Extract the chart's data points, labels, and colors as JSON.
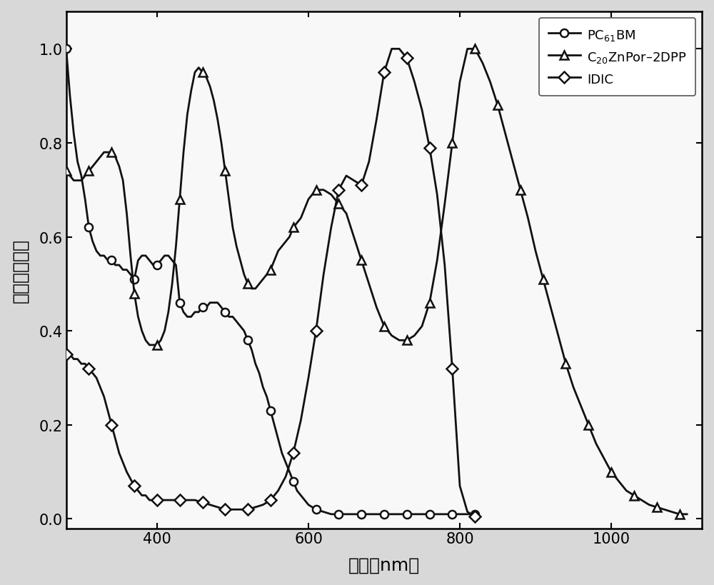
{
  "title": "",
  "xlabel": "波长（nm）",
  "ylabel": "归一化吸收値",
  "xlim": [
    280,
    1120
  ],
  "ylim": [
    -0.02,
    1.08
  ],
  "xticks": [
    400,
    600,
    800,
    1000
  ],
  "yticks": [
    0.0,
    0.2,
    0.4,
    0.6,
    0.8,
    1.0
  ],
  "line_color": "#111111",
  "legend": [
    "PC$_{61}$BM",
    "C$_{20}$ZnPor–2DPP",
    "IDIC"
  ],
  "PC61BM_x": [
    280,
    285,
    290,
    295,
    300,
    305,
    310,
    315,
    320,
    325,
    330,
    335,
    340,
    345,
    350,
    355,
    360,
    365,
    370,
    375,
    380,
    385,
    390,
    395,
    400,
    405,
    410,
    415,
    420,
    425,
    430,
    435,
    440,
    445,
    450,
    455,
    460,
    465,
    470,
    475,
    480,
    485,
    490,
    495,
    500,
    505,
    510,
    515,
    520,
    525,
    530,
    535,
    540,
    545,
    550,
    555,
    560,
    565,
    570,
    575,
    580,
    585,
    590,
    595,
    600,
    610,
    620,
    630,
    640,
    650,
    660,
    670,
    680,
    690,
    700,
    710,
    720,
    730,
    740,
    750,
    760,
    770,
    780,
    790,
    800,
    810,
    820
  ],
  "PC61BM_y": [
    1.0,
    0.9,
    0.82,
    0.76,
    0.73,
    0.68,
    0.62,
    0.59,
    0.57,
    0.56,
    0.56,
    0.55,
    0.55,
    0.54,
    0.54,
    0.53,
    0.53,
    0.52,
    0.51,
    0.55,
    0.56,
    0.56,
    0.55,
    0.54,
    0.54,
    0.55,
    0.56,
    0.56,
    0.55,
    0.54,
    0.46,
    0.44,
    0.43,
    0.43,
    0.44,
    0.44,
    0.45,
    0.45,
    0.46,
    0.46,
    0.46,
    0.45,
    0.44,
    0.43,
    0.43,
    0.42,
    0.41,
    0.4,
    0.38,
    0.36,
    0.33,
    0.31,
    0.28,
    0.26,
    0.23,
    0.2,
    0.17,
    0.14,
    0.12,
    0.1,
    0.08,
    0.06,
    0.05,
    0.04,
    0.03,
    0.02,
    0.015,
    0.01,
    0.01,
    0.01,
    0.01,
    0.01,
    0.01,
    0.01,
    0.01,
    0.01,
    0.01,
    0.01,
    0.01,
    0.01,
    0.01,
    0.01,
    0.01,
    0.01,
    0.01,
    0.01,
    0.01
  ],
  "C20ZnPor_x": [
    280,
    285,
    290,
    295,
    300,
    305,
    310,
    315,
    320,
    325,
    330,
    335,
    340,
    345,
    350,
    355,
    360,
    365,
    370,
    375,
    380,
    385,
    390,
    395,
    400,
    405,
    410,
    415,
    420,
    425,
    430,
    435,
    440,
    445,
    450,
    455,
    460,
    465,
    470,
    475,
    480,
    485,
    490,
    495,
    500,
    505,
    510,
    515,
    520,
    525,
    530,
    535,
    540,
    545,
    550,
    555,
    560,
    565,
    570,
    575,
    580,
    585,
    590,
    595,
    600,
    610,
    620,
    630,
    640,
    650,
    660,
    670,
    680,
    690,
    700,
    710,
    720,
    730,
    740,
    750,
    760,
    770,
    780,
    790,
    800,
    810,
    820,
    830,
    840,
    850,
    860,
    870,
    880,
    890,
    900,
    910,
    920,
    930,
    940,
    950,
    960,
    970,
    980,
    990,
    1000,
    1010,
    1020,
    1030,
    1040,
    1050,
    1060,
    1070,
    1080,
    1090,
    1100
  ],
  "C20ZnPor_y": [
    0.74,
    0.73,
    0.72,
    0.72,
    0.72,
    0.73,
    0.74,
    0.75,
    0.76,
    0.77,
    0.78,
    0.78,
    0.78,
    0.77,
    0.75,
    0.72,
    0.65,
    0.56,
    0.48,
    0.43,
    0.4,
    0.38,
    0.37,
    0.37,
    0.37,
    0.38,
    0.4,
    0.44,
    0.5,
    0.58,
    0.68,
    0.78,
    0.86,
    0.91,
    0.95,
    0.96,
    0.95,
    0.94,
    0.92,
    0.89,
    0.85,
    0.8,
    0.74,
    0.68,
    0.62,
    0.58,
    0.55,
    0.52,
    0.5,
    0.49,
    0.49,
    0.5,
    0.51,
    0.52,
    0.53,
    0.55,
    0.57,
    0.58,
    0.59,
    0.6,
    0.62,
    0.63,
    0.64,
    0.66,
    0.68,
    0.7,
    0.7,
    0.69,
    0.67,
    0.65,
    0.6,
    0.55,
    0.5,
    0.45,
    0.41,
    0.39,
    0.38,
    0.38,
    0.39,
    0.41,
    0.46,
    0.55,
    0.67,
    0.8,
    0.93,
    1.0,
    1.0,
    0.97,
    0.93,
    0.88,
    0.82,
    0.76,
    0.7,
    0.64,
    0.57,
    0.51,
    0.45,
    0.39,
    0.33,
    0.28,
    0.24,
    0.2,
    0.16,
    0.13,
    0.1,
    0.08,
    0.06,
    0.05,
    0.04,
    0.03,
    0.025,
    0.02,
    0.015,
    0.01,
    0.01
  ],
  "IDIC_x": [
    280,
    285,
    290,
    295,
    300,
    305,
    310,
    315,
    320,
    325,
    330,
    335,
    340,
    345,
    350,
    355,
    360,
    365,
    370,
    375,
    380,
    385,
    390,
    395,
    400,
    410,
    420,
    430,
    440,
    450,
    460,
    470,
    480,
    490,
    500,
    510,
    520,
    530,
    540,
    550,
    560,
    570,
    580,
    590,
    600,
    610,
    620,
    630,
    640,
    650,
    660,
    670,
    680,
    690,
    700,
    710,
    720,
    730,
    740,
    750,
    760,
    770,
    780,
    790,
    800,
    810,
    820
  ],
  "IDIC_y": [
    0.35,
    0.35,
    0.34,
    0.34,
    0.33,
    0.33,
    0.32,
    0.31,
    0.3,
    0.28,
    0.26,
    0.23,
    0.2,
    0.17,
    0.14,
    0.12,
    0.1,
    0.085,
    0.07,
    0.06,
    0.05,
    0.05,
    0.04,
    0.04,
    0.04,
    0.04,
    0.04,
    0.04,
    0.04,
    0.04,
    0.035,
    0.03,
    0.025,
    0.02,
    0.02,
    0.02,
    0.02,
    0.025,
    0.03,
    0.04,
    0.06,
    0.09,
    0.14,
    0.21,
    0.3,
    0.4,
    0.52,
    0.62,
    0.7,
    0.73,
    0.72,
    0.71,
    0.76,
    0.85,
    0.95,
    1.0,
    1.0,
    0.98,
    0.93,
    0.87,
    0.79,
    0.69,
    0.54,
    0.32,
    0.07,
    0.015,
    0.005
  ]
}
